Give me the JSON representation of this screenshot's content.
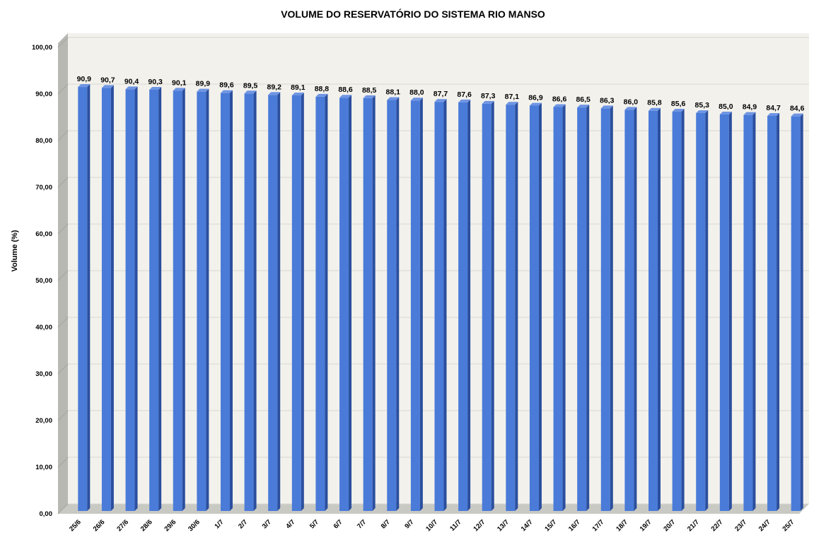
{
  "chart_data": {
    "type": "bar",
    "title": "VOLUME DO RESERVATÓRIO DO SISTEMA RIO MANSO",
    "xlabel": "",
    "ylabel": "Volume (%)",
    "ylim": [
      0,
      100
    ],
    "yticks": [
      "0,00",
      "10,00",
      "20,00",
      "30,00",
      "40,00",
      "50,00",
      "60,00",
      "70,00",
      "80,00",
      "90,00",
      "100,00"
    ],
    "categories": [
      "25/6",
      "26/6",
      "27/6",
      "28/6",
      "29/6",
      "30/6",
      "1/7",
      "2/7",
      "3/7",
      "4/7",
      "5/7",
      "6/7",
      "7/7",
      "8/7",
      "9/7",
      "10/7",
      "11/7",
      "12/7",
      "13/7",
      "14/7",
      "15/7",
      "16/7",
      "17/7",
      "18/7",
      "19/7",
      "20/7",
      "21/7",
      "22/7",
      "23/7",
      "24/7",
      "25/7"
    ],
    "values": [
      90.9,
      90.7,
      90.4,
      90.3,
      90.1,
      89.9,
      89.6,
      89.5,
      89.2,
      89.1,
      88.8,
      88.6,
      88.5,
      88.1,
      88.0,
      87.7,
      87.6,
      87.3,
      87.1,
      86.9,
      86.6,
      86.5,
      86.3,
      86.0,
      85.8,
      85.6,
      85.3,
      85.0,
      84.9,
      84.7,
      84.6
    ],
    "data_labels": [
      "90,9",
      "90,7",
      "90,4",
      "90,3",
      "90,1",
      "89,9",
      "89,6",
      "89,5",
      "89,2",
      "89,1",
      "88,8",
      "88,6",
      "88,5",
      "88,1",
      "88,0",
      "87,7",
      "87,6",
      "87,3",
      "87,1",
      "86,9",
      "86,6",
      "86,5",
      "86,3",
      "86,0",
      "85,8",
      "85,6",
      "85,3",
      "85,0",
      "84,9",
      "84,7",
      "84,6"
    ],
    "grid": true,
    "legend": "none",
    "style": "3d-columns"
  },
  "colors": {
    "bar_front": "#4a7bd8",
    "bar_side": "#2b4f9e",
    "bar_top": "#6f95e3",
    "plot_back": "#f2f1ec",
    "wall_left": "#b8b8b3",
    "floor": "#c9c9c4",
    "gridline": "#d9d8d2"
  }
}
